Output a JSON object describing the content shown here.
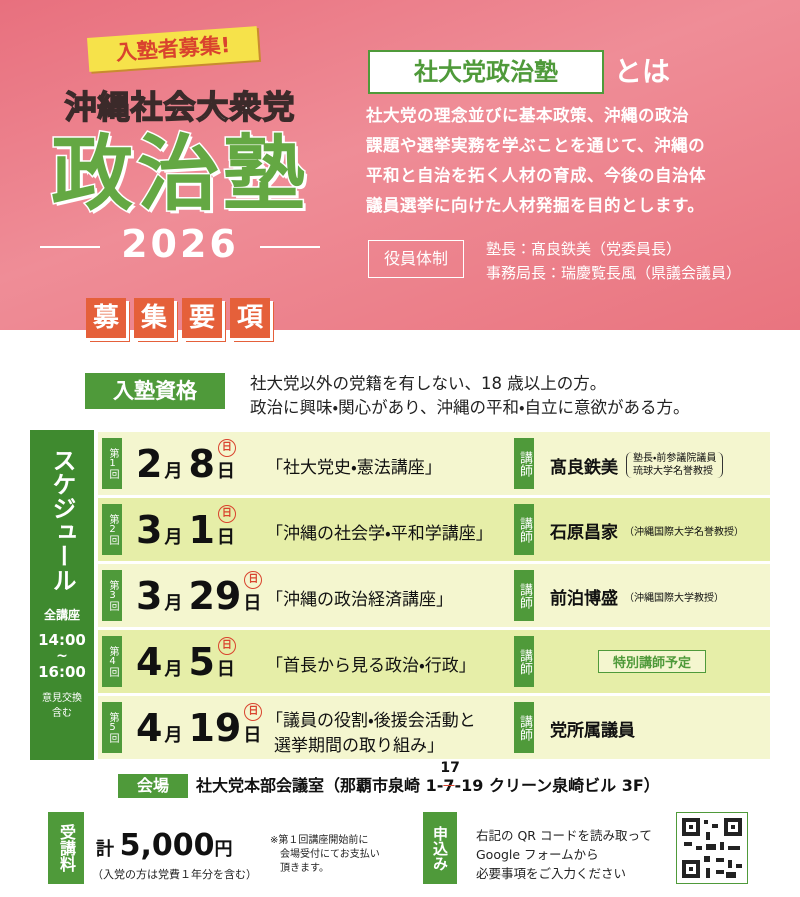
{
  "header": {
    "badge": "入塾者募集!",
    "party": "沖縄社会大衆党",
    "title": "政治塾",
    "year": "2026"
  },
  "about": {
    "heading": "社大党政治塾",
    "suffix": "とは",
    "lines": [
      "社大党の理念並びに基本政策、沖縄の政治",
      "課題や選挙実務を学ぶことを通じて、沖縄の",
      "平和と自治を拓く人材の育成、今後の自治体",
      "議員選挙に向けた人材発掘を目的とします。"
    ],
    "officers_label": "役員体制",
    "officers": [
      "塾長：髙良鉄美（党委員長）",
      "事務局長：瑞慶覧長風（県議会議員）"
    ]
  },
  "section_title": [
    "募",
    "集",
    "要",
    "項"
  ],
  "eligibility": {
    "label": "入塾資格",
    "lines": [
      "社大党以外の党籍を有しない、18 歳以上の方。",
      "政治に興味・関心があり、沖縄の平和・自立に意欲がある方。"
    ]
  },
  "schedule": {
    "label": "スケジュール",
    "all": "全講座",
    "start": "14:00",
    "tilde": "~",
    "end": "16:00",
    "note": [
      "意見交換",
      "含む"
    ],
    "month_unit": "月",
    "day_unit": "日",
    "lecturer_label": "講師",
    "rows": [
      {
        "session": "第1回",
        "month": 2,
        "day": 8,
        "weekday": "日",
        "title": [
          "「社大党史・憲法講座」"
        ],
        "lecturer": "髙良鉄美",
        "lecturer_note": [
          "塾長・前参議院議員",
          "琉球大学名誉教授"
        ]
      },
      {
        "session": "第2回",
        "month": 3,
        "day": 1,
        "weekday": "日",
        "title": [
          "「沖縄の社会学・平和学講座」"
        ],
        "lecturer": "石原昌家",
        "lecturer_note": [
          "（沖縄国際大学名誉教授）"
        ]
      },
      {
        "session": "第3回",
        "month": 3,
        "day": 29,
        "weekday": "日",
        "title": [
          "「沖縄の政治経済講座」"
        ],
        "lecturer": "前泊博盛",
        "lecturer_note": [
          "（沖縄国際大学教授）"
        ]
      },
      {
        "session": "第4回",
        "month": 4,
        "day": 5,
        "weekday": "日",
        "title": [
          "「首長から見る政治・行政」"
        ],
        "lecturer": "特別講師予定",
        "lecturer_note": []
      },
      {
        "session": "第5回",
        "month": 4,
        "day": 19,
        "weekday": "日",
        "title": [
          "「議員の役割・後援会活動と",
          "選挙期間の取り組み」"
        ],
        "lecturer": "党所属議員",
        "lecturer_note": []
      }
    ]
  },
  "venue": {
    "label": "会場",
    "before": "社大党本部会議室（那覇市泉崎 1-",
    "struck": "7",
    "correction": "17",
    "after": "-19 クリーン泉崎ビル 3F）"
  },
  "fee": {
    "label": "受講料",
    "prefix": "計",
    "amount": "5,000",
    "unit": "円",
    "note": "（入党の方は党費１年分を含む）",
    "payment": [
      "※第１回講座開始前に",
      "会場受付にてお支払い",
      "頂きます。"
    ]
  },
  "apply": {
    "label": "申込み",
    "lines": [
      "右記の QR コードを読み取って",
      "Google フォームから",
      "必要事項をご入力ください"
    ]
  }
}
